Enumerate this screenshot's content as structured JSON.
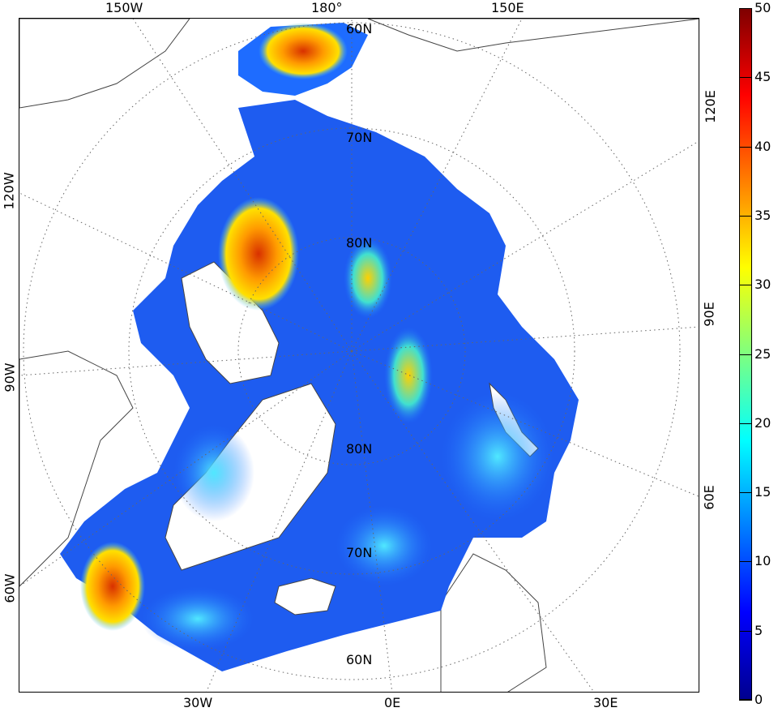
{
  "map": {
    "top_labels": [
      "150W",
      "180°",
      "150E"
    ],
    "bottom_labels": [
      "30W",
      "0E",
      "30E"
    ],
    "left_labels": [
      "120W",
      "90W",
      "60W"
    ],
    "right_labels": [
      "120E",
      "90E",
      "60E"
    ],
    "lat_labels_upper": [
      "60N",
      "70N",
      "80N"
    ],
    "lat_labels_lower": [
      "80N",
      "70N",
      "60N"
    ],
    "grid": "dotted"
  },
  "colorbar": {
    "min": 0,
    "max": 50,
    "ticks": [
      "0",
      "5",
      "10",
      "15",
      "20",
      "25",
      "30",
      "35",
      "40",
      "45",
      "50"
    ],
    "colormap": "jet",
    "colors": [
      "#00008f",
      "#0000ff",
      "#007fff",
      "#00ffff",
      "#7fff7f",
      "#ffff00",
      "#ff7f00",
      "#ff0000",
      "#7f0000"
    ]
  },
  "colors": {
    "land_outline": "#333333",
    "grid_line": "#666666",
    "sea_base": "#1e5cf0",
    "hotspot": "#ff7a00"
  }
}
